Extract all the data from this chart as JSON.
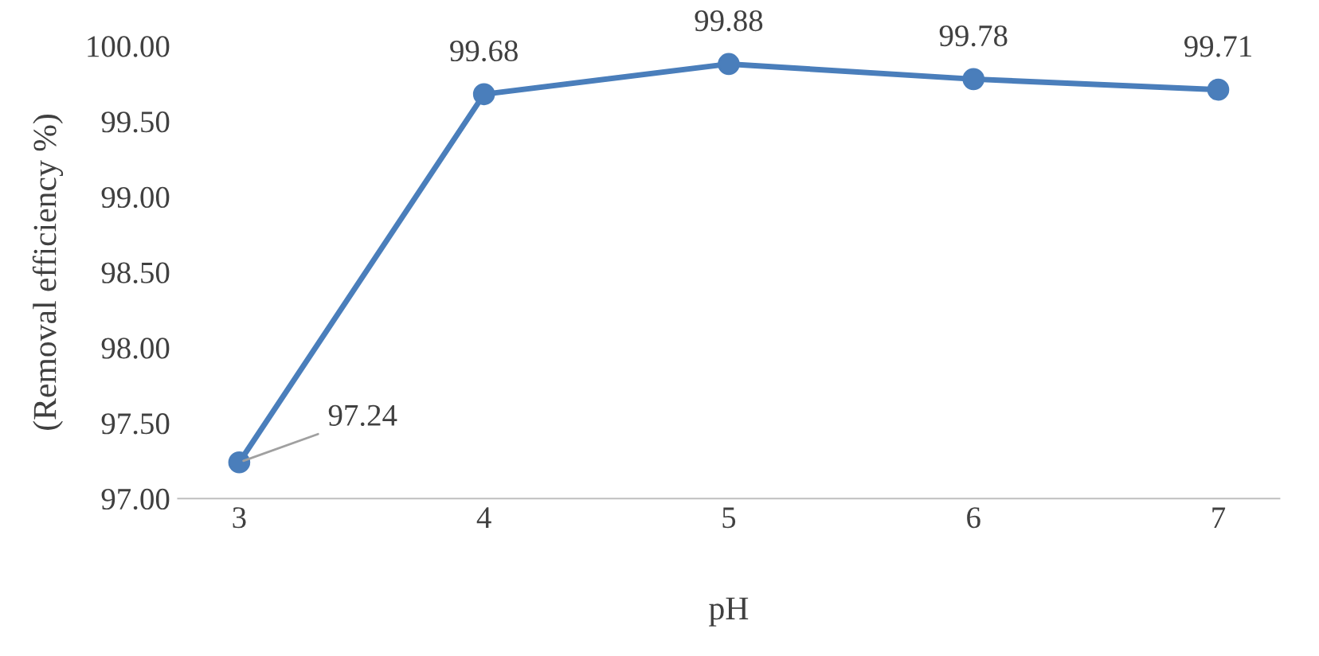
{
  "chart_data": {
    "type": "line",
    "xlabel": "pH",
    "ylabel": "(Removal efficiency %)",
    "categories": [
      "3",
      "4",
      "5",
      "6",
      "7"
    ],
    "series": [
      {
        "color": "#4a7ebb",
        "values": [
          97.24,
          99.68,
          99.88,
          99.78,
          99.71
        ]
      }
    ],
    "ylim": [
      97,
      100
    ],
    "yticks": [
      {
        "value": 97,
        "label": "97.00"
      },
      {
        "value": 97.5,
        "label": "97.50"
      },
      {
        "value": 98,
        "label": "98.00"
      },
      {
        "value": 98.5,
        "label": "98.50"
      },
      {
        "value": 99,
        "label": "99.00"
      },
      {
        "value": 99.5,
        "label": "99.50"
      },
      {
        "value": 100,
        "label": "100.00"
      }
    ],
    "data_labels": true,
    "marker": "circle",
    "grid": false,
    "line_style": "solid"
  }
}
